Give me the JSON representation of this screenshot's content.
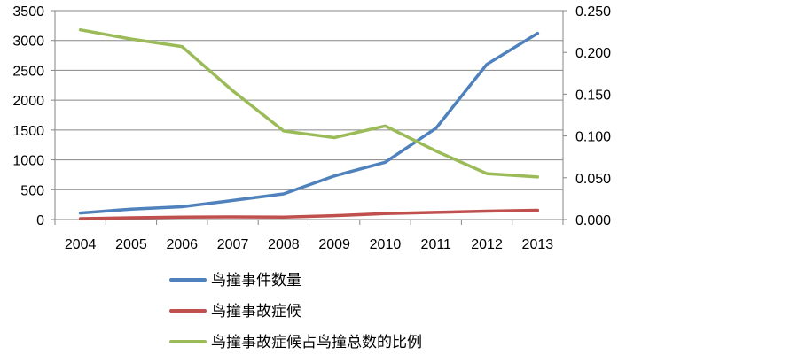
{
  "chart_data": {
    "type": "line",
    "title": "",
    "xlabel": "",
    "ylabel": "",
    "x": [
      "2004",
      "2005",
      "2006",
      "2007",
      "2008",
      "2009",
      "2010",
      "2011",
      "2012",
      "2013"
    ],
    "ylim_left": [
      0,
      3500
    ],
    "yticks_left": [
      "0",
      "500",
      "1000",
      "1500",
      "2000",
      "2500",
      "3000",
      "3500"
    ],
    "ylim_right": [
      0,
      0.25
    ],
    "yticks_right": [
      "0.000",
      "0.050",
      "0.100",
      "0.150",
      "0.200",
      "0.250"
    ],
    "grid": true,
    "legend_position": "bottom",
    "series": [
      {
        "name": "鸟撞事件数量",
        "axis": "left",
        "color": "#4F81BD",
        "values": [
          110,
          175,
          215,
          320,
          430,
          730,
          960,
          1530,
          2600,
          3120
        ]
      },
      {
        "name": "鸟撞事故症候",
        "axis": "left",
        "color": "#C0504D",
        "values": [
          15,
          30,
          40,
          45,
          40,
          65,
          100,
          120,
          140,
          155
        ]
      },
      {
        "name": "鸟撞事故症候占鸟撞总数的比例",
        "axis": "right",
        "color": "#9BBB59",
        "values": [
          0.227,
          0.216,
          0.207,
          0.154,
          0.106,
          0.098,
          0.112,
          0.082,
          0.055,
          0.051
        ]
      }
    ]
  }
}
